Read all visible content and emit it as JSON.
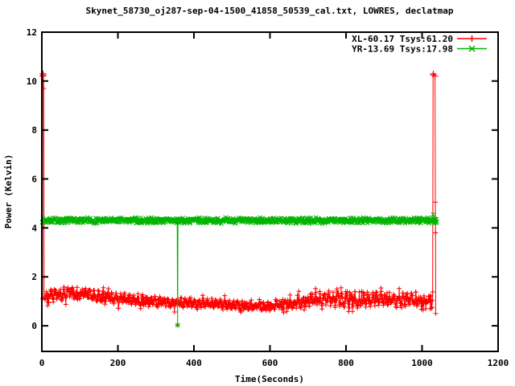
{
  "window": {
    "title": "Skynet_58730_oj287-sep-04-1500_41858_50539_cal.txt, LOWRES, declatmap"
  },
  "axes": {
    "xlabel": "Time(Seconds)",
    "ylabel": "Power (Kelvin)",
    "x_ticks": [
      0,
      200,
      400,
      600,
      800,
      1000,
      1200
    ],
    "y_ticks": [
      0,
      2,
      4,
      6,
      8,
      10,
      12
    ],
    "x_range": [
      0,
      1200
    ],
    "y_range": [
      -1.05,
      12
    ]
  },
  "legend": {
    "entries": [
      {
        "label": "XL-60.17 Tsys:61.20",
        "color": "#ff0000",
        "marker": "plus"
      },
      {
        "label": "YR-13.69 Tsys:17.98",
        "color": "#00b400",
        "marker": "cross"
      }
    ]
  },
  "colors": {
    "xl_series": "#ff0000",
    "yr_series": "#00b400",
    "axis": "#000000",
    "background": "#ffffff"
  },
  "chart_data": {
    "type": "line",
    "title": "Skynet_58730_oj287-sep-04-1500_41858_50539_cal.txt, LOWRES, declatmap",
    "xlabel": "Time(Seconds)",
    "ylabel": "Power (Kelvin)",
    "xlim": [
      0,
      1200
    ],
    "ylim": [
      -1.05,
      12
    ],
    "grid": false,
    "legend_position": "top-right-inside",
    "series": [
      {
        "name": "XL-60.17 Tsys:61.20",
        "color": "#ff0000",
        "marker": "plus",
        "style": "linespoints",
        "x_start": 8,
        "x_end": 1028,
        "x_step": 1,
        "trend_x": [
          8,
          40,
          80,
          120,
          160,
          200,
          250,
          300,
          350,
          400,
          450,
          500,
          550,
          600,
          650,
          700,
          750,
          800,
          840,
          880,
          920,
          960,
          1000,
          1028
        ],
        "trend_y": [
          1.15,
          1.3,
          1.35,
          1.28,
          1.2,
          1.12,
          1.04,
          0.98,
          0.95,
          0.93,
          0.9,
          0.85,
          0.78,
          0.8,
          0.9,
          1.02,
          1.1,
          1.12,
          1.05,
          1.12,
          1.05,
          1.1,
          1.02,
          0.95
        ],
        "noise_x": [
          8,
          200,
          400,
          600,
          700,
          800,
          900,
          1000,
          1028
        ],
        "noise_y": [
          0.28,
          0.22,
          0.2,
          0.16,
          0.25,
          0.36,
          0.3,
          0.3,
          0.4
        ],
        "prefix_points": [
          [
            2,
            1.1
          ],
          [
            2.5,
            10.2
          ],
          [
            3,
            10.3
          ],
          [
            4,
            10.25
          ],
          [
            5,
            9.7
          ],
          [
            6,
            1.15
          ]
        ],
        "suffix_points": [
          [
            1029,
            10.25
          ],
          [
            1030,
            10.3
          ],
          [
            1034,
            10.2
          ],
          [
            1035,
            5.05
          ],
          [
            1035.5,
            3.8
          ],
          [
            1036,
            0.5
          ]
        ],
        "isolated_points": [
          [
            357,
            0.03
          ]
        ]
      },
      {
        "name": "YR-13.69 Tsys:17.98",
        "color": "#00b400",
        "marker": "cross",
        "style": "linespoints",
        "x_start": 1,
        "x_end": 1039,
        "x_step": 1,
        "mean": 4.3,
        "noise": 0.1,
        "outliers": {
          "357": 0.02,
          "1029": 4.55
        }
      }
    ]
  }
}
